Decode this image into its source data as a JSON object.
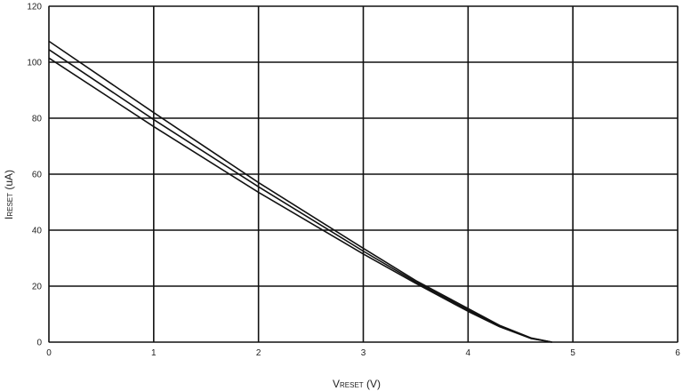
{
  "chart_data": {
    "type": "line",
    "xlabel": {
      "main": "V",
      "sub": "RESET",
      "unit": " (V)"
    },
    "ylabel": {
      "main": "I",
      "sub": "RESET",
      "unit": " (uA)"
    },
    "xlim": [
      0,
      6
    ],
    "ylim": [
      0,
      120
    ],
    "x_ticks": [
      0,
      1,
      2,
      3,
      4,
      5,
      6
    ],
    "y_ticks": [
      0,
      20,
      40,
      60,
      80,
      100,
      120
    ],
    "grid": true,
    "legend": "none",
    "line_color": "#111111",
    "series": [
      {
        "x": [
          0,
          1,
          2,
          3,
          3.5,
          4,
          4.3,
          4.6,
          4.8
        ],
        "y": [
          107.5,
          82,
          57,
          33.5,
          22,
          12,
          6,
          1.5,
          0
        ]
      },
      {
        "x": [
          0,
          1,
          2,
          3,
          3.5,
          4,
          4.3,
          4.6,
          4.8
        ],
        "y": [
          104.5,
          79.5,
          55.5,
          32.5,
          21.5,
          11.5,
          5.8,
          1.4,
          0
        ]
      },
      {
        "x": [
          0,
          1,
          2,
          3,
          3.5,
          4,
          4.3,
          4.6,
          4.8
        ],
        "y": [
          101.5,
          77,
          53.5,
          31.5,
          21,
          11,
          5.5,
          1.3,
          0
        ]
      }
    ]
  }
}
